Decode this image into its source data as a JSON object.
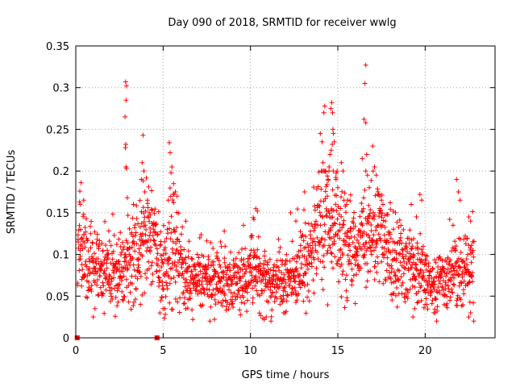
{
  "chart_data": {
    "type": "scatter",
    "title": "Day 090 of 2018, SRMTID for receiver wwlg",
    "xlabel": "GPS time / hours",
    "ylabel": "SRMTID / TECUs",
    "xlim": [
      0,
      24
    ],
    "ylim": [
      0,
      0.35
    ],
    "xticks": [
      0,
      5,
      10,
      15,
      20
    ],
    "yticks": [
      0,
      0.05,
      0.1,
      0.15,
      0.2,
      0.25,
      0.3,
      0.35
    ],
    "ytick_labels": [
      "0",
      "0.05",
      "0.1",
      "0.15",
      "0.2",
      "0.25",
      "0.3",
      "0.35"
    ],
    "xtick_labels": [
      "0",
      "5",
      "10",
      "15",
      "20"
    ],
    "grid": true,
    "marker": "plus",
    "color": "#ff0000",
    "zero_markers": [
      {
        "x": 0.08,
        "y": 0
      },
      {
        "x": 4.65,
        "y": 0
      }
    ],
    "profile": [
      [
        0.1,
        0.11
      ],
      [
        0.5,
        0.095
      ],
      [
        1.0,
        0.09
      ],
      [
        1.5,
        0.08
      ],
      [
        2.0,
        0.08
      ],
      [
        2.5,
        0.08
      ],
      [
        3.0,
        0.085
      ],
      [
        3.5,
        0.1
      ],
      [
        4.0,
        0.115
      ],
      [
        4.5,
        0.12
      ],
      [
        5.0,
        0.07
      ],
      [
        5.5,
        0.12
      ],
      [
        6.0,
        0.08
      ],
      [
        6.5,
        0.07
      ],
      [
        7.0,
        0.07
      ],
      [
        7.5,
        0.068
      ],
      [
        8.0,
        0.068
      ],
      [
        8.5,
        0.068
      ],
      [
        9.0,
        0.065
      ],
      [
        9.5,
        0.062
      ],
      [
        10.0,
        0.085
      ],
      [
        10.5,
        0.08
      ],
      [
        11.0,
        0.07
      ],
      [
        11.5,
        0.07
      ],
      [
        12.0,
        0.075
      ],
      [
        12.5,
        0.08
      ],
      [
        13.0,
        0.09
      ],
      [
        13.5,
        0.1
      ],
      [
        14.0,
        0.13
      ],
      [
        14.5,
        0.15
      ],
      [
        15.0,
        0.13
      ],
      [
        15.5,
        0.11
      ],
      [
        16.0,
        0.1
      ],
      [
        16.5,
        0.12
      ],
      [
        17.0,
        0.12
      ],
      [
        17.5,
        0.13
      ],
      [
        18.0,
        0.1
      ],
      [
        18.5,
        0.095
      ],
      [
        19.0,
        0.09
      ],
      [
        19.5,
        0.085
      ],
      [
        20.0,
        0.08
      ],
      [
        20.5,
        0.065
      ],
      [
        21.0,
        0.07
      ],
      [
        21.5,
        0.075
      ],
      [
        22.0,
        0.085
      ],
      [
        22.5,
        0.09
      ],
      [
        22.8,
        0.09
      ]
    ],
    "outliers": [
      {
        "x": 0.3,
        "y": 0.186
      },
      {
        "x": 0.25,
        "y": 0.16
      },
      {
        "x": 0.45,
        "y": 0.165
      },
      {
        "x": 1.0,
        "y": 0.025
      },
      {
        "x": 1.1,
        "y": 0.035
      },
      {
        "x": 2.85,
        "y": 0.307
      },
      {
        "x": 2.9,
        "y": 0.302
      },
      {
        "x": 2.88,
        "y": 0.285
      },
      {
        "x": 2.82,
        "y": 0.265
      },
      {
        "x": 2.86,
        "y": 0.232
      },
      {
        "x": 2.84,
        "y": 0.228
      },
      {
        "x": 2.87,
        "y": 0.205
      },
      {
        "x": 2.9,
        "y": 0.203
      },
      {
        "x": 2.95,
        "y": 0.168
      },
      {
        "x": 3.3,
        "y": 0.16
      },
      {
        "x": 3.85,
        "y": 0.243
      },
      {
        "x": 3.8,
        "y": 0.21
      },
      {
        "x": 3.9,
        "y": 0.2
      },
      {
        "x": 3.75,
        "y": 0.19
      },
      {
        "x": 3.95,
        "y": 0.175
      },
      {
        "x": 4.1,
        "y": 0.165
      },
      {
        "x": 4.2,
        "y": 0.15
      },
      {
        "x": 3.7,
        "y": 0.04
      },
      {
        "x": 5.0,
        "y": 0.035
      },
      {
        "x": 5.1,
        "y": 0.035
      },
      {
        "x": 5.35,
        "y": 0.234
      },
      {
        "x": 5.4,
        "y": 0.222
      },
      {
        "x": 5.5,
        "y": 0.205
      },
      {
        "x": 5.45,
        "y": 0.198
      },
      {
        "x": 5.6,
        "y": 0.185
      },
      {
        "x": 5.7,
        "y": 0.175
      },
      {
        "x": 5.8,
        "y": 0.17
      },
      {
        "x": 5.3,
        "y": 0.165
      },
      {
        "x": 6.3,
        "y": 0.14
      },
      {
        "x": 7.1,
        "y": 0.12
      },
      {
        "x": 8.5,
        "y": 0.128
      },
      {
        "x": 9.6,
        "y": 0.135
      },
      {
        "x": 10.3,
        "y": 0.155
      },
      {
        "x": 10.4,
        "y": 0.152
      },
      {
        "x": 10.2,
        "y": 0.142
      },
      {
        "x": 10.9,
        "y": 0.025
      },
      {
        "x": 10.8,
        "y": 0.022
      },
      {
        "x": 11.9,
        "y": 0.03
      },
      {
        "x": 12.3,
        "y": 0.15
      },
      {
        "x": 12.6,
        "y": 0.14
      },
      {
        "x": 13.1,
        "y": 0.175
      },
      {
        "x": 14.0,
        "y": 0.245
      },
      {
        "x": 14.1,
        "y": 0.235
      },
      {
        "x": 14.2,
        "y": 0.27
      },
      {
        "x": 14.25,
        "y": 0.278
      },
      {
        "x": 14.15,
        "y": 0.21
      },
      {
        "x": 14.3,
        "y": 0.2
      },
      {
        "x": 14.45,
        "y": 0.19
      },
      {
        "x": 14.55,
        "y": 0.22
      },
      {
        "x": 14.6,
        "y": 0.275
      },
      {
        "x": 14.65,
        "y": 0.282
      },
      {
        "x": 14.7,
        "y": 0.27
      },
      {
        "x": 14.72,
        "y": 0.25
      },
      {
        "x": 14.75,
        "y": 0.245
      },
      {
        "x": 14.68,
        "y": 0.232
      },
      {
        "x": 14.8,
        "y": 0.235
      },
      {
        "x": 14.62,
        "y": 0.225
      },
      {
        "x": 14.5,
        "y": 0.205
      },
      {
        "x": 14.9,
        "y": 0.19
      },
      {
        "x": 15.0,
        "y": 0.18
      },
      {
        "x": 15.2,
        "y": 0.21
      },
      {
        "x": 15.3,
        "y": 0.2
      },
      {
        "x": 15.5,
        "y": 0.16
      },
      {
        "x": 14.4,
        "y": 0.17
      },
      {
        "x": 16.6,
        "y": 0.327
      },
      {
        "x": 16.55,
        "y": 0.305
      },
      {
        "x": 16.5,
        "y": 0.262
      },
      {
        "x": 16.6,
        "y": 0.258
      },
      {
        "x": 16.65,
        "y": 0.22
      },
      {
        "x": 16.4,
        "y": 0.215
      },
      {
        "x": 16.7,
        "y": 0.195
      },
      {
        "x": 16.8,
        "y": 0.18
      },
      {
        "x": 17.0,
        "y": 0.23
      },
      {
        "x": 17.1,
        "y": 0.205
      },
      {
        "x": 17.2,
        "y": 0.195
      },
      {
        "x": 17.3,
        "y": 0.175
      },
      {
        "x": 17.4,
        "y": 0.17
      },
      {
        "x": 17.5,
        "y": 0.165
      },
      {
        "x": 18.0,
        "y": 0.162
      },
      {
        "x": 18.3,
        "y": 0.15
      },
      {
        "x": 19.2,
        "y": 0.16
      },
      {
        "x": 19.5,
        "y": 0.145
      },
      {
        "x": 19.7,
        "y": 0.172
      },
      {
        "x": 19.8,
        "y": 0.165
      },
      {
        "x": 19.3,
        "y": 0.025
      },
      {
        "x": 19.4,
        "y": 0.035
      },
      {
        "x": 20.0,
        "y": 0.04
      },
      {
        "x": 20.1,
        "y": 0.04
      },
      {
        "x": 20.5,
        "y": 0.03
      },
      {
        "x": 21.4,
        "y": 0.142
      },
      {
        "x": 21.6,
        "y": 0.135
      },
      {
        "x": 21.8,
        "y": 0.19
      },
      {
        "x": 21.9,
        "y": 0.175
      },
      {
        "x": 22.0,
        "y": 0.165
      },
      {
        "x": 22.5,
        "y": 0.145
      },
      {
        "x": 22.6,
        "y": 0.14
      },
      {
        "x": 22.5,
        "y": 0.025
      },
      {
        "x": 22.6,
        "y": 0.03
      }
    ]
  }
}
